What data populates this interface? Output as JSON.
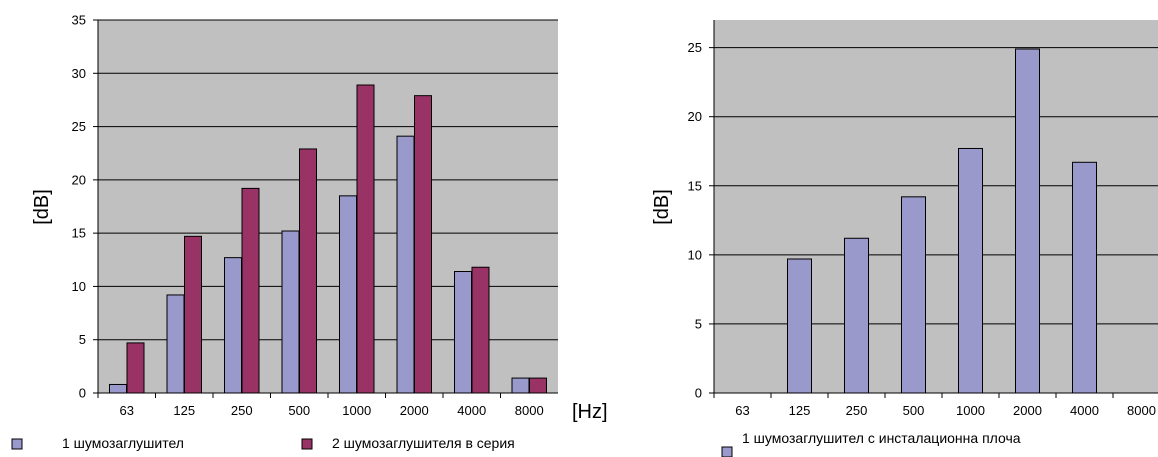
{
  "colors": {
    "plot_bg": "#c0c0c0",
    "series_a": "#9999cc",
    "series_b": "#993366",
    "grid": "#000000"
  },
  "chart_data": [
    {
      "type": "bar",
      "categories": [
        "63",
        "125",
        "250",
        "500",
        "1000",
        "2000",
        "4000",
        "8000"
      ],
      "series": [
        {
          "name": "1 шумозаглушител",
          "values": [
            0.8,
            9.2,
            12.7,
            15.2,
            18.5,
            24.1,
            11.4,
            1.4
          ]
        },
        {
          "name": "2 шумозаглушителя в серия",
          "values": [
            4.7,
            14.7,
            19.2,
            22.9,
            28.9,
            27.9,
            11.8,
            1.4
          ]
        }
      ],
      "ylabel": "[dB]",
      "xlabel": "[Hz]",
      "ylim": [
        0,
        35
      ],
      "yticks": [
        "0",
        "5",
        "10",
        "15",
        "20",
        "25",
        "30",
        "35"
      ],
      "grid": true,
      "legend": "bottom"
    },
    {
      "type": "bar",
      "categories": [
        "63",
        "125",
        "250",
        "500",
        "1000",
        "2000",
        "4000",
        "8000"
      ],
      "series": [
        {
          "name": "1 шумозаглушител с инсталационна плоча",
          "values": [
            null,
            9.7,
            11.2,
            14.2,
            17.7,
            24.9,
            16.7,
            null
          ]
        }
      ],
      "ylabel": "[dB]",
      "xlabel": "",
      "ylim": [
        0,
        27
      ],
      "yticks": [
        "0",
        "5",
        "10",
        "15",
        "20",
        "25"
      ],
      "grid": true,
      "legend": "bottom"
    }
  ]
}
